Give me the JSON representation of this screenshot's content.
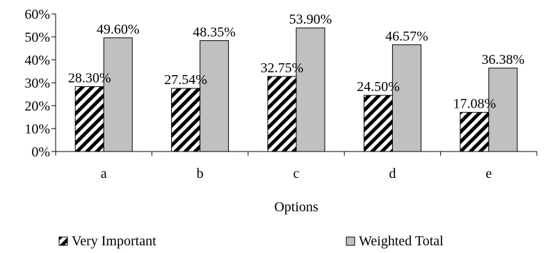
{
  "chart_data": {
    "type": "bar",
    "title": "",
    "xlabel": "Options",
    "ylabel": "",
    "categories": [
      "a",
      "b",
      "c",
      "d",
      "e"
    ],
    "series": [
      {
        "name": "Very Important",
        "values": [
          28.3,
          27.54,
          32.75,
          24.5,
          17.08
        ],
        "labels": [
          "28.30%",
          "27.54%",
          "32.75%",
          "24.50%",
          "17.08%"
        ],
        "fill": "hatched"
      },
      {
        "name": "Weighted Total",
        "values": [
          49.6,
          48.35,
          53.9,
          46.57,
          36.38
        ],
        "labels": [
          "49.60%",
          "48.35%",
          "53.90%",
          "46.57%",
          "36.38%"
        ],
        "fill": "gray"
      }
    ],
    "ylim": [
      0,
      60
    ],
    "yticks": [
      0,
      10,
      20,
      30,
      40,
      50,
      60
    ],
    "ytick_labels": [
      "0%",
      "10%",
      "20%",
      "30%",
      "40%",
      "50%",
      "60%"
    ],
    "grid": false,
    "legend_position": "bottom",
    "colors": {
      "gray_bar": "#c0c0c0",
      "hatch": "#000000",
      "axis": "#000000"
    }
  }
}
